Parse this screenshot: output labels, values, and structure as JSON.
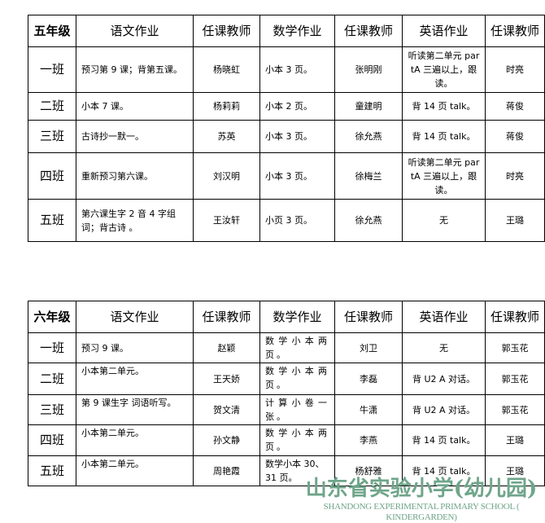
{
  "grade5": {
    "headers": [
      "五年级",
      "语文作业",
      "任课教师",
      "数学作业",
      "任课教师",
      "英语作业",
      "任课教师"
    ],
    "rows": [
      [
        "一班",
        "预习第 9 课；背第五课。",
        "杨晓虹",
        "小本 3 页。",
        "张明刚",
        "听读第二单元 partA 三遍以上，跟读。",
        "时亮"
      ],
      [
        "二班",
        "小本 7 课。",
        "杨莉莉",
        "小本 2 页。",
        "童建明",
        "背 14 页 talk。",
        "蒋俊"
      ],
      [
        "三班",
        "古诗抄一默一。",
        "苏英",
        "小本 3 页。",
        "徐允燕",
        "背 14 页 talk。",
        "蒋俊"
      ],
      [
        "四班",
        "重新预习第六课。",
        "刘汉明",
        "小本 3 页。",
        "徐梅兰",
        "听读第二单元 partA 三遍以上，跟读。",
        "时亮"
      ],
      [
        "五班",
        "第六课生字 2 音 4 字组词；背古诗 。",
        "王汝轩",
        "小页 3 页。",
        "徐允燕",
        "无",
        "王璐"
      ]
    ]
  },
  "grade6": {
    "headers": [
      "六年级",
      "语文作业",
      "任课教师",
      "数学作业",
      "任课教师",
      "英语作业",
      "任课教师"
    ],
    "rows": [
      [
        "一班",
        "预习 9 课。",
        "赵颖",
        "数学小本两页。",
        "刘卫",
        "无",
        "郭玉花"
      ],
      [
        "二班",
        "小本第二单元。",
        "王天娇",
        "数学小本两页。",
        "李磊",
        "背 U2 A 对话。",
        "郭玉花"
      ],
      [
        "三班",
        "第 9 课生字 词语听写。",
        "贺文清",
        "计算小卷一张。",
        "牛潇",
        "背 U2 A 对话。",
        "郭玉花"
      ],
      [
        "四班",
        "小本第二单元。",
        "孙文静",
        "数学小本两页。",
        "李燕",
        "背 14 页 talk。",
        "王璐"
      ],
      [
        "五班",
        "小本第二单元。",
        "周艳霞",
        "数学小本 30、31 页。",
        "杨舒雅",
        "背 14 页 talk。",
        "王璐"
      ]
    ]
  },
  "watermark": {
    "name_cn": "山东省实验小学(幼儿园)",
    "name_en": "SHANDONG EXPERIMENTAL PRIMARY SCHOOL ( KINDERGARDEN)",
    "color": "#6fa58a"
  }
}
